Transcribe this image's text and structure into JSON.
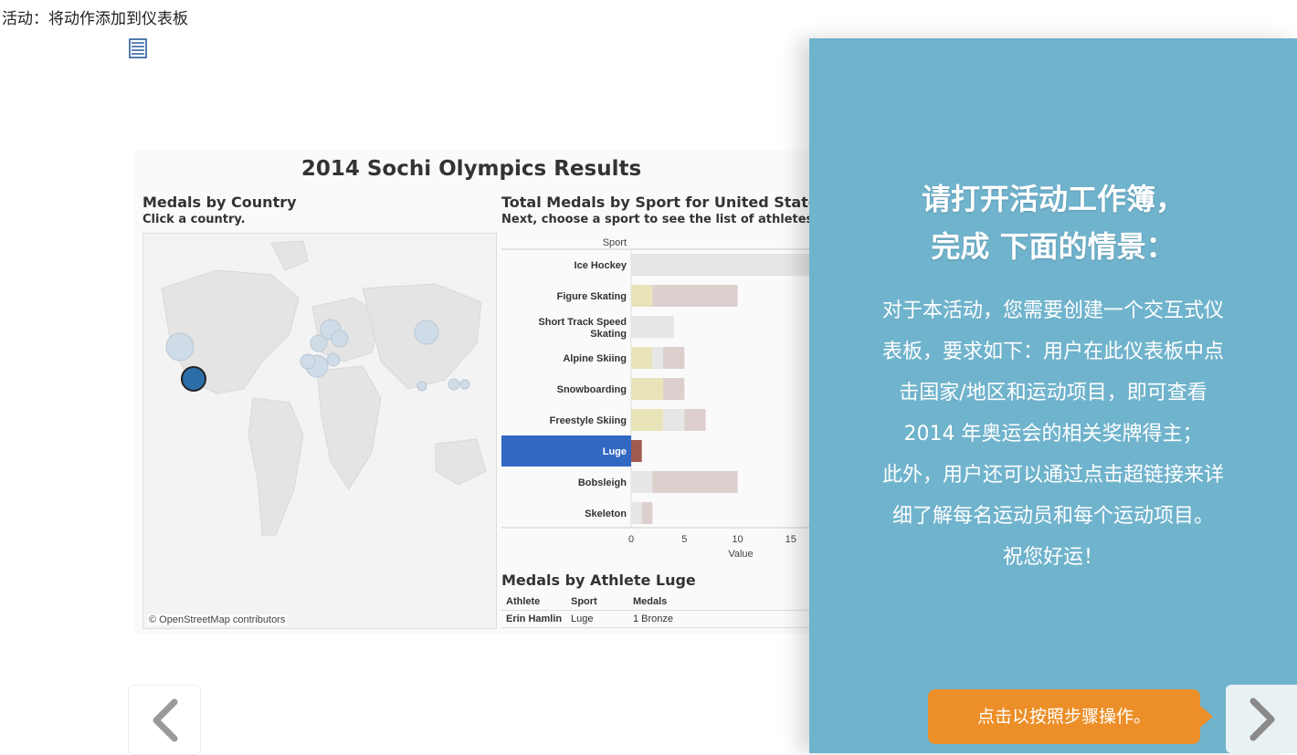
{
  "page": {
    "title": "活动：将动作添加到仪表板"
  },
  "dashboard": {
    "title": "2014 Sochi Olympics Results",
    "map": {
      "title": "Medals by Country",
      "subtitle": "Click a country.",
      "credit": "© OpenStreetMap contributors"
    },
    "bar_chart": {
      "title": "Total Medals by Sport for United States",
      "subtitle": "Next, choose a sport to see the list of athletes."
    },
    "athletes": {
      "title": "Medals by Athlete Luge",
      "columns": [
        "Athlete",
        "Sport",
        "Medals"
      ],
      "rows": [
        {
          "athlete": "Erin Hamlin",
          "sport": "Luge",
          "medals": "1 Bronze"
        }
      ]
    }
  },
  "chart_data": {
    "type": "bar",
    "orientation": "horizontal",
    "stacked": true,
    "title": "Total Medals by Sport for United States",
    "xlabel": "Value",
    "ylabel": "Sport",
    "xlim": [
      0,
      20
    ],
    "xticks": [
      0,
      5,
      10,
      15,
      20
    ],
    "categories": [
      "Ice Hockey",
      "Figure Skating",
      "Short Track Speed Skating",
      "Alpine Skiing",
      "Snowboarding",
      "Freestyle Skiing",
      "Luge",
      "Bobsleigh",
      "Skeleton"
    ],
    "selected": "Luge",
    "series": [
      {
        "color": "#e8e3b8",
        "values": [
          0,
          2,
          0,
          2,
          3,
          3,
          0,
          0,
          0
        ]
      },
      {
        "color": "#e6e6e6",
        "values": [
          20,
          0,
          4,
          1,
          0,
          2,
          0,
          2,
          1
        ]
      },
      {
        "color": "#ddcfce",
        "values": [
          0,
          8,
          0,
          2,
          2,
          2,
          1,
          8,
          1
        ]
      }
    ],
    "highlight_color": "#a05a4e",
    "selected_row_color": "#3268c2"
  },
  "panel": {
    "heading_line1": "请打开活动工作簿，",
    "heading_line2": "完成 下面的情景：",
    "body_lines": [
      "对于本活动，您需要创建一个交互式仪",
      "表板，要求如下：用户在此仪表板中点",
      "击国家/地区和运动项目，即可查看",
      "2014 年奥运会的相关奖牌得主；",
      "此外，用户还可以通过点击超链接来详",
      "细了解每名运动员和每个运动项目。",
      "祝您好运！"
    ],
    "background": "#70b3cc"
  },
  "navigation": {
    "callout": "点击以按照步骤操作。",
    "callout_color": "#ec8f28"
  }
}
